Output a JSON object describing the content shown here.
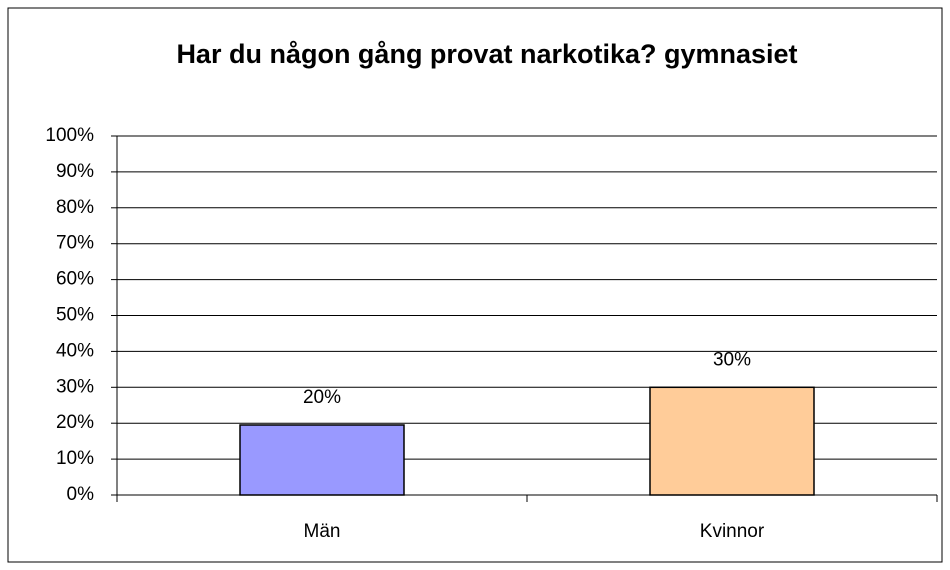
{
  "chart_data": {
    "type": "bar",
    "title": "Har du någon gång provat narkotika? gymnasiet",
    "categories": [
      "Män",
      "Kvinnor"
    ],
    "values": [
      19.5,
      30
    ],
    "value_labels": [
      "20%",
      "30%"
    ],
    "colors": [
      "#9999ff",
      "#ffcc99"
    ],
    "ylim": [
      0,
      100
    ],
    "yticks": [
      {
        "value": 0,
        "label": "0%"
      },
      {
        "value": 10,
        "label": "10%"
      },
      {
        "value": 20,
        "label": "20%"
      },
      {
        "value": 30,
        "label": "30%"
      },
      {
        "value": 40,
        "label": "40%"
      },
      {
        "value": 50,
        "label": "50%"
      },
      {
        "value": 60,
        "label": "60%"
      },
      {
        "value": 70,
        "label": "70%"
      },
      {
        "value": 80,
        "label": "80%"
      },
      {
        "value": 90,
        "label": "90%"
      },
      {
        "value": 100,
        "label": "100%"
      }
    ],
    "grid": true
  }
}
